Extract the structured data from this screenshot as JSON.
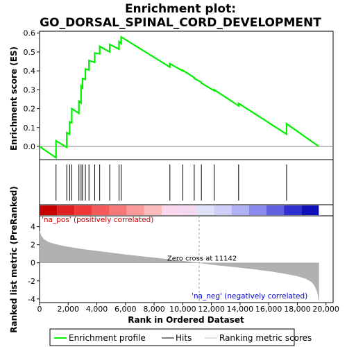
{
  "chart_data": {
    "type": "line",
    "title_line1": "Enrichment plot:",
    "title_line2": "GO_DORSAL_SPINAL_CORD_DEVELOPMENT",
    "es_ylabel": "Enrichment score (ES)",
    "metric_ylabel": "Ranked list metric (PreRanked)",
    "xlabel": "Rank in Ordered Dataset",
    "es_ylim": [
      -0.07,
      0.61
    ],
    "es_yticks": [
      "0.0",
      "0.1",
      "0.2",
      "0.3",
      "0.4",
      "0.5",
      "0.6"
    ],
    "es_ytick_values": [
      0.0,
      0.1,
      0.2,
      0.3,
      0.4,
      0.5,
      0.6
    ],
    "metric_ylim": [
      -4.4,
      5.2
    ],
    "metric_yticks": [
      "-4",
      "-2",
      "0",
      "2",
      "4"
    ],
    "metric_ytick_values": [
      -4,
      -2,
      0,
      2,
      4
    ],
    "xlim": [
      0,
      20500
    ],
    "xticks": [
      "0",
      "2,000",
      "4,000",
      "6,000",
      "8,000",
      "10,000",
      "12,000",
      "14,000",
      "16,000",
      "18,000",
      "20,000"
    ],
    "xtick_values": [
      0,
      2000,
      4000,
      6000,
      8000,
      10000,
      12000,
      14000,
      16000,
      18000,
      20000
    ],
    "n_genes": 19500,
    "hits": [
      1150,
      1900,
      2100,
      2250,
      2750,
      2900,
      3000,
      3200,
      3450,
      3850,
      4200,
      4900,
      5550,
      5700,
      9100,
      10000,
      10800,
      11300,
      12200,
      13900,
      17250
    ],
    "es_points": {
      "x": [
        0,
        1150,
        1150,
        1900,
        1900,
        2100,
        2100,
        2250,
        2250,
        2750,
        2750,
        2900,
        2900,
        3000,
        3000,
        3200,
        3200,
        3450,
        3450,
        3850,
        3850,
        4200,
        4200,
        4900,
        4900,
        5550,
        5550,
        5700,
        5700,
        9100,
        9100,
        10000,
        10000,
        10800,
        10800,
        11300,
        11300,
        12200,
        12200,
        13900,
        13900,
        17250,
        17250,
        19500
      ],
      "y": [
        0.0,
        -0.06,
        0.03,
        -0.005,
        0.073,
        0.065,
        0.13,
        0.125,
        0.2,
        0.175,
        0.24,
        0.23,
        0.32,
        0.31,
        0.36,
        0.355,
        0.41,
        0.405,
        0.455,
        0.445,
        0.495,
        0.49,
        0.53,
        0.5,
        0.54,
        0.515,
        0.555,
        0.545,
        0.58,
        0.42,
        0.438,
        0.4,
        0.403,
        0.365,
        0.36,
        0.34,
        0.335,
        0.295,
        0.3,
        0.215,
        0.228,
        0.065,
        0.12,
        0.0
      ]
    },
    "metric_curve": {
      "x": [
        0,
        100,
        300,
        600,
        1000,
        1500,
        2000,
        3000,
        4000,
        5000,
        6000,
        7000,
        8000,
        9000,
        10000,
        11142,
        12000,
        13000,
        14000,
        15000,
        16000,
        17000,
        18000,
        18600,
        19000,
        19200,
        19350,
        19450,
        19500
      ],
      "y": [
        3.5,
        3.0,
        2.6,
        2.3,
        2.1,
        1.9,
        1.75,
        1.5,
        1.3,
        1.1,
        0.9,
        0.72,
        0.55,
        0.38,
        0.2,
        0.0,
        -0.18,
        -0.35,
        -0.52,
        -0.7,
        -0.9,
        -1.15,
        -1.45,
        -1.75,
        -2.1,
        -2.5,
        -3.0,
        -3.6,
        -4.2
      ]
    },
    "zero_cross_rank": 11142,
    "zero_cross_label": "Zero cross at 11142",
    "pos_label": "'na_pos' (positively correlated)",
    "neg_label": "'na_neg' (negatively correlated)",
    "legend": [
      "Enrichment profile",
      "Hits",
      "Ranking metric scores"
    ],
    "colors": {
      "es_line": "#00ee00",
      "hit_line": "#000000",
      "metric_fill": "#b0b0b0",
      "pos_text": "#cc0000",
      "neg_text": "#0000cc",
      "zero_line": "#a0a0a0"
    },
    "heatmap_colors": [
      "#c80000",
      "#e02020",
      "#f03a3a",
      "#f55a5a",
      "#f87878",
      "#fa9a9a",
      "#fbbcbc",
      "#fcd6ec",
      "#f4d8f0",
      "#e0e0f8",
      "#cfcffa",
      "#b0b0f5",
      "#8a8aee",
      "#6060e0",
      "#3030d0",
      "#1010b8"
    ]
  }
}
